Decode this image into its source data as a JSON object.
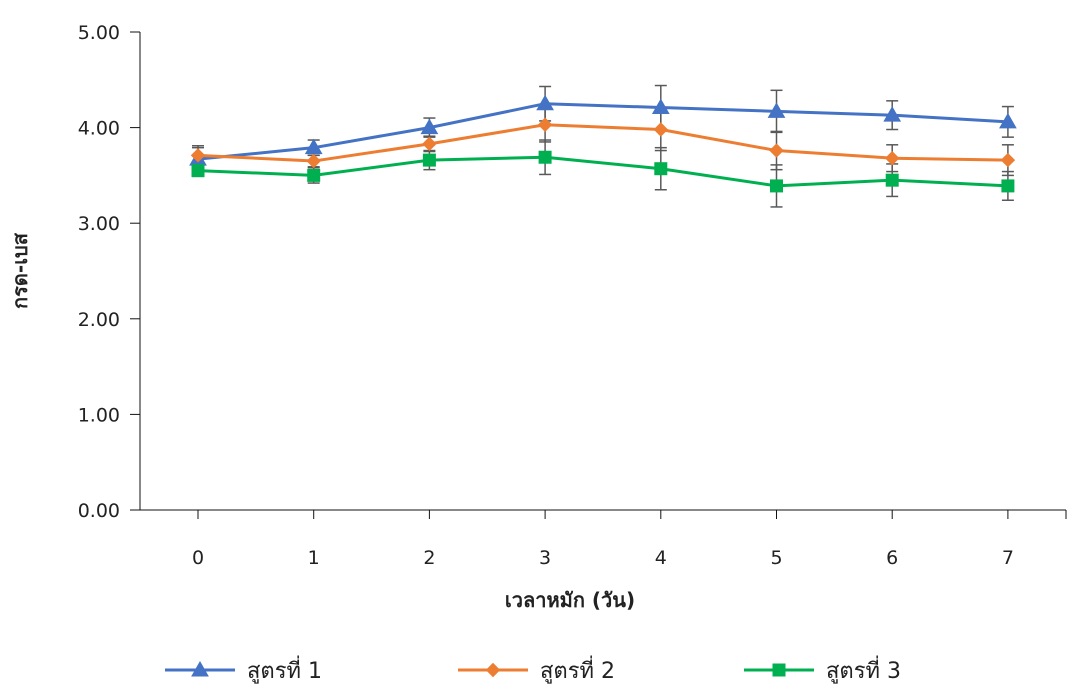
{
  "chart_data": {
    "type": "line",
    "title": "",
    "xlabel": "เวลาหมัก (วัน)",
    "ylabel": "กรด-เบส",
    "x": [
      0,
      1,
      2,
      3,
      4,
      5,
      6,
      7
    ],
    "x_tick_labels": [
      "0",
      "1",
      "2",
      "3",
      "4",
      "5",
      "6",
      "7"
    ],
    "ylim": [
      0,
      5
    ],
    "y_ticks": [
      0,
      1,
      2,
      3,
      4,
      5
    ],
    "y_tick_labels": [
      "0.00",
      "1.00",
      "2.00",
      "3.00",
      "4.00",
      "5.00"
    ],
    "grid": false,
    "legend_position": "bottom",
    "series": [
      {
        "name": "สูตรที่ 1",
        "color": "#4472C4",
        "marker": "triangle",
        "values": [
          3.67,
          3.79,
          4.0,
          4.25,
          4.21,
          4.17,
          4.13,
          4.06
        ],
        "error": [
          0.12,
          0.08,
          0.1,
          0.18,
          0.23,
          0.22,
          0.15,
          0.16
        ]
      },
      {
        "name": "สูตรที่ 2",
        "color": "#ED7D31",
        "marker": "diamond",
        "values": [
          3.71,
          3.65,
          3.83,
          4.03,
          3.98,
          3.76,
          3.68,
          3.66
        ],
        "error": [
          0.1,
          0.06,
          0.08,
          0.18,
          0.22,
          0.2,
          0.14,
          0.16
        ]
      },
      {
        "name": "สูตรที่ 3",
        "color": "#00B050",
        "marker": "square",
        "values": [
          3.55,
          3.5,
          3.66,
          3.69,
          3.57,
          3.39,
          3.45,
          3.39
        ],
        "error": [
          0.06,
          0.08,
          0.1,
          0.18,
          0.22,
          0.22,
          0.17,
          0.15
        ]
      }
    ]
  }
}
